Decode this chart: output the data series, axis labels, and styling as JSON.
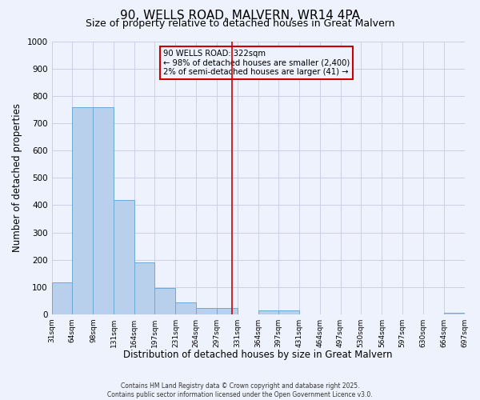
{
  "title": "90, WELLS ROAD, MALVERN, WR14 4PA",
  "subtitle": "Size of property relative to detached houses in Great Malvern",
  "xlabel": "Distribution of detached houses by size in Great Malvern",
  "ylabel": "Number of detached properties",
  "bin_edges": [
    31,
    64,
    98,
    131,
    164,
    197,
    231,
    264,
    297,
    331,
    364,
    397,
    431,
    464,
    497,
    530,
    564,
    597,
    630,
    664,
    697
  ],
  "bar_heights": [
    117,
    757,
    757,
    420,
    190,
    97,
    44,
    22,
    22,
    0,
    14,
    14,
    0,
    0,
    0,
    0,
    0,
    0,
    0,
    7
  ],
  "bar_color": "#b8d0ec",
  "bar_edgecolor": "#6aaad4",
  "vline_x": 322,
  "vline_color": "#cc0000",
  "annotation_line1": "90 WELLS ROAD: 322sqm",
  "annotation_line2": "← 98% of detached houses are smaller (2,400)",
  "annotation_line3": "2% of semi-detached houses are larger (41) →",
  "annotation_box_edgecolor": "#cc0000",
  "ylim": [
    0,
    1000
  ],
  "yticks": [
    0,
    100,
    200,
    300,
    400,
    500,
    600,
    700,
    800,
    900,
    1000
  ],
  "background_color": "#eef2fc",
  "grid_color": "#c8cfe8",
  "footer_line1": "Contains HM Land Registry data © Crown copyright and database right 2025.",
  "footer_line2": "Contains public sector information licensed under the Open Government Licence v3.0.",
  "title_fontsize": 11,
  "subtitle_fontsize": 9,
  "xlabel_fontsize": 8.5,
  "ylabel_fontsize": 8.5,
  "tick_labels": [
    "31sqm",
    "64sqm",
    "98sqm",
    "131sqm",
    "164sqm",
    "197sqm",
    "231sqm",
    "264sqm",
    "297sqm",
    "331sqm",
    "364sqm",
    "397sqm",
    "431sqm",
    "464sqm",
    "497sqm",
    "530sqm",
    "564sqm",
    "597sqm",
    "630sqm",
    "664sqm",
    "697sqm"
  ]
}
